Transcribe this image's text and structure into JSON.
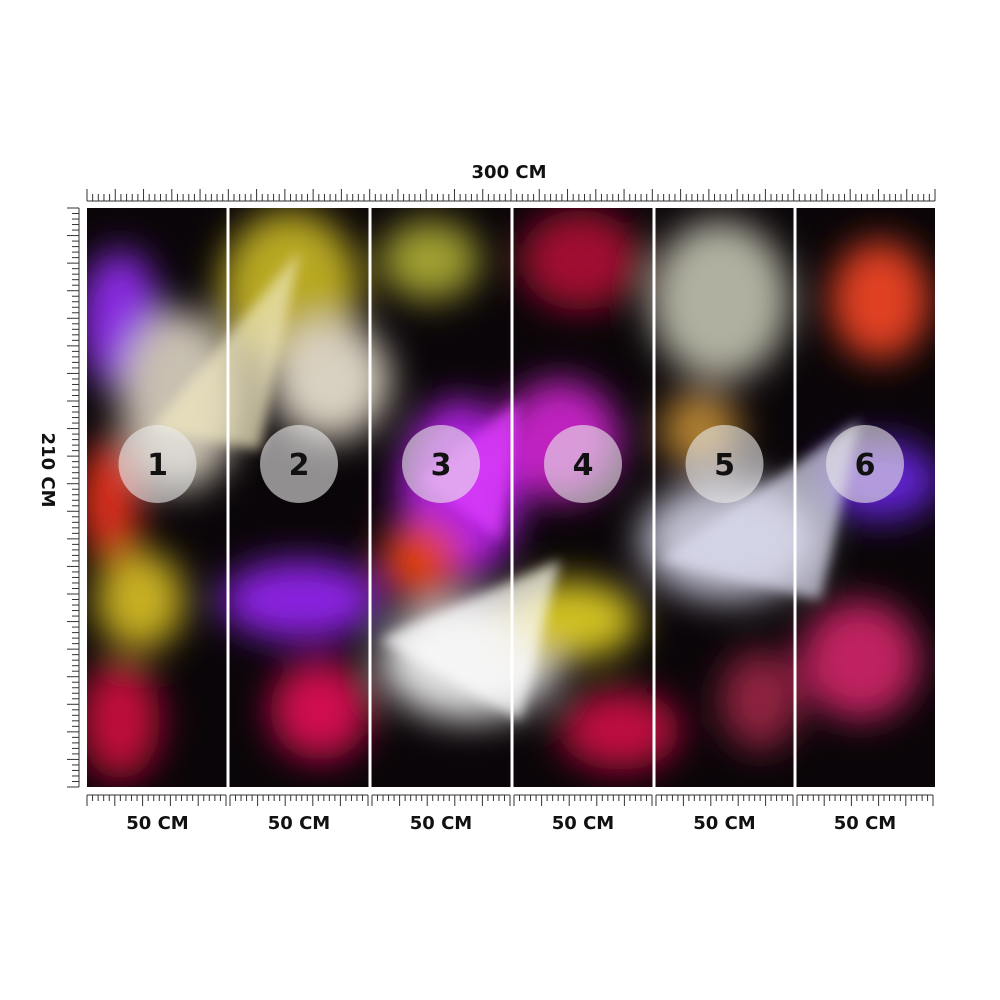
{
  "width_label": "300 CM",
  "height_label": "210 CM",
  "panels": [
    {
      "number": "1",
      "width_label": "50 CM"
    },
    {
      "number": "2",
      "width_label": "50 CM"
    },
    {
      "number": "3",
      "width_label": "50 CM"
    },
    {
      "number": "4",
      "width_label": "50 CM"
    },
    {
      "number": "5",
      "width_label": "50 CM"
    },
    {
      "number": "6",
      "width_label": "50 CM"
    }
  ]
}
